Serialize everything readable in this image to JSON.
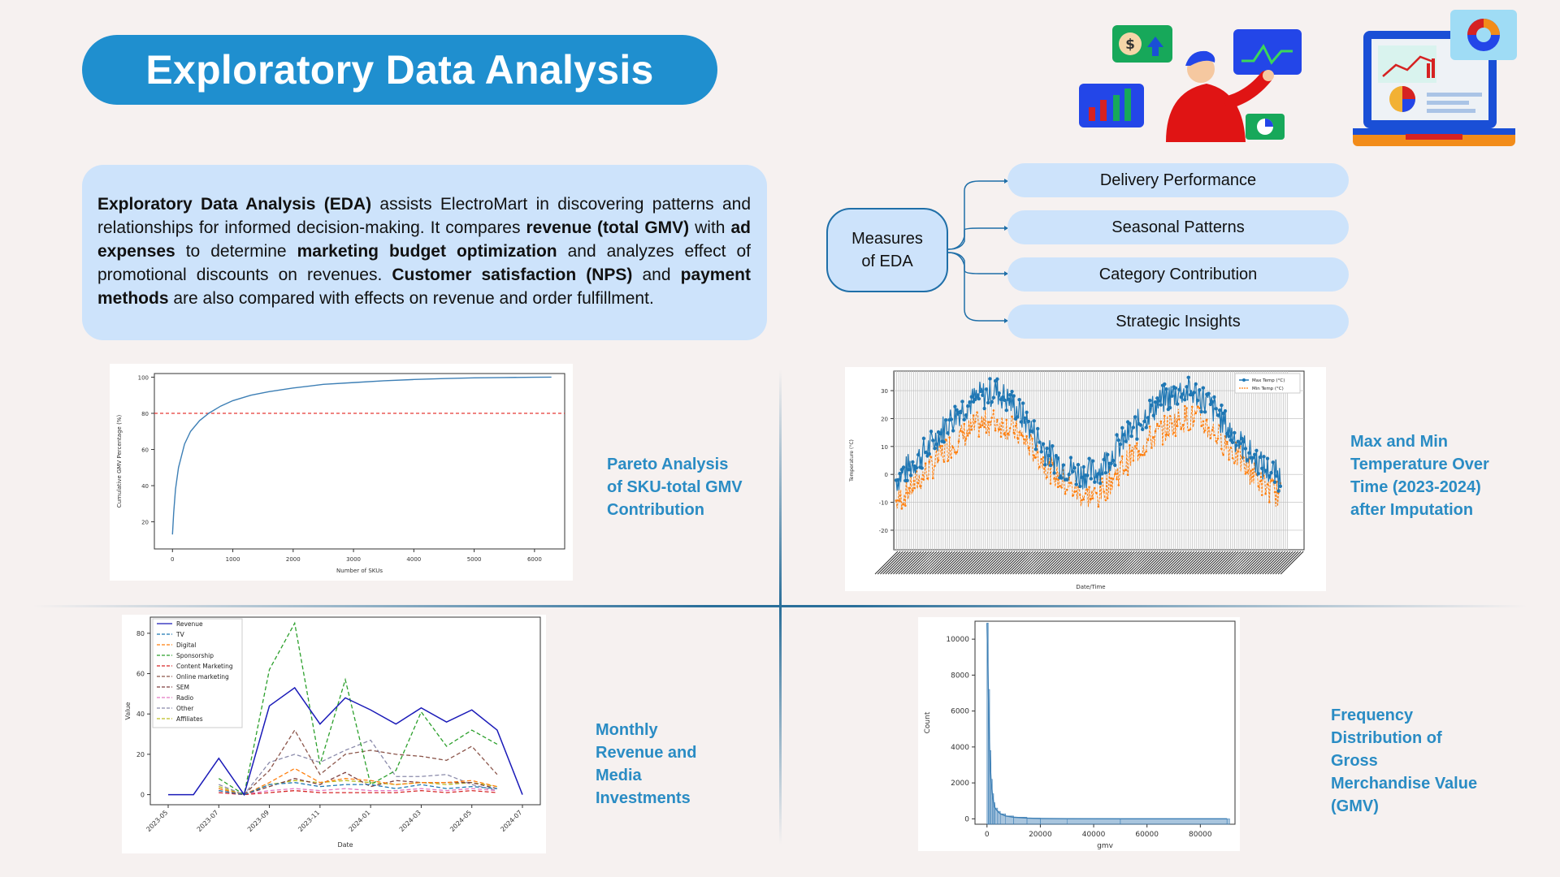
{
  "header": {
    "title": "Exploratory Data Analysis"
  },
  "intro": {
    "segments": [
      {
        "t": "Exploratory Data Analysis (EDA)",
        "b": true
      },
      {
        "t": " assists ElectroMart in discovering patterns and relationships for informed decision-making. It compares ",
        "b": false
      },
      {
        "t": "revenue (total GMV)",
        "b": true
      },
      {
        "t": " with ",
        "b": false
      },
      {
        "t": "ad expenses",
        "b": true
      },
      {
        "t": " to determine ",
        "b": false
      },
      {
        "t": "marketing budget optimization",
        "b": true
      },
      {
        "t": " and analyzes effect of promotional discounts on revenues. ",
        "b": false
      },
      {
        "t": "Customer satisfaction (NPS)",
        "b": true
      },
      {
        "t": " and ",
        "b": false
      },
      {
        "t": "payment methods",
        "b": true
      },
      {
        "t": " are also compared with effects on revenue and order fulfillment.",
        "b": false
      }
    ]
  },
  "measures": {
    "hub_line1": "Measures",
    "hub_line2": "of EDA",
    "items": [
      "Delivery Performance",
      "Seasonal Patterns",
      "Category Contribution",
      "Strategic Insights"
    ]
  },
  "captions": {
    "pareto": [
      "Pareto Analysis",
      "of SKU-total GMV",
      "Contribution"
    ],
    "temperature": [
      "Max and Min",
      "Temperature Over",
      "Time (2023-2024)",
      "after Imputation"
    ],
    "media": [
      "Monthly",
      "Revenue and",
      "Media",
      "Investments"
    ],
    "gmv": [
      "Frequency",
      "Distribution of",
      "Gross",
      "Merchandise Value",
      "(GMV)"
    ]
  },
  "colors": {
    "accent": "#1f8fcf",
    "panel": "#cde3fb",
    "caption": "#2a8cc4",
    "background": "#f6f1f0"
  },
  "chart_data": [
    {
      "type": "line",
      "id": "pareto",
      "xlabel": "Number of SKUs",
      "ylabel": "Cumulative GMV Percentage (%)",
      "xticks": [
        0,
        1000,
        2000,
        3000,
        4000,
        5000,
        6000
      ],
      "yticks": [
        20,
        40,
        60,
        80,
        100
      ],
      "xlim": [
        -300,
        6500
      ],
      "ylim": [
        5,
        102
      ],
      "reference_line": {
        "y": 80,
        "color": "#e53935",
        "style": "dashed"
      },
      "series": [
        {
          "color": "#3d7fb5",
          "x": [
            0,
            20,
            50,
            100,
            200,
            300,
            450,
            600,
            800,
            1000,
            1300,
            1600,
            2000,
            2500,
            3000,
            3500,
            4000,
            4500,
            5000,
            5500,
            6000,
            6280
          ],
          "y": [
            13,
            25,
            38,
            50,
            63,
            70,
            76,
            80,
            84,
            87,
            90,
            92,
            94,
            96,
            97,
            98,
            98.7,
            99.2,
            99.6,
            99.8,
            99.95,
            100
          ]
        }
      ]
    },
    {
      "type": "line",
      "id": "temperature",
      "xlabel": "Date/Time",
      "ylabel": "Temperature (°C)",
      "yticks": [
        -20,
        -10,
        0,
        10,
        20,
        30
      ],
      "ylim": [
        -27,
        37
      ],
      "grid": true,
      "legend": "top-right",
      "series": [
        {
          "name": "Max Temp (°C)",
          "color": "#1f77b4",
          "style": "solid-marker"
        },
        {
          "name": "Min Temp (°C)",
          "color": "#ff7f0e",
          "style": "dashed-marker"
        }
      ],
      "pattern": {
        "x_months": [
          0,
          1,
          2,
          3,
          4,
          5,
          6,
          7,
          8,
          9,
          10,
          11,
          12,
          13,
          14,
          15,
          16,
          17,
          18,
          19,
          20,
          21,
          22,
          23
        ],
        "max_temp": [
          -2,
          4,
          10,
          18,
          24,
          28,
          30,
          25,
          17,
          8,
          3,
          0,
          1,
          8,
          15,
          22,
          27,
          30,
          29,
          23,
          15,
          8,
          2,
          -1
        ],
        "min_temp": [
          -10,
          -4,
          2,
          9,
          14,
          18,
          19,
          16,
          10,
          3,
          -3,
          -7,
          -8,
          -1,
          6,
          12,
          16,
          20,
          20,
          15,
          9,
          2,
          -4,
          -8
        ]
      }
    },
    {
      "type": "line",
      "id": "media",
      "xlabel": "Date",
      "ylabel": "Value",
      "categories": [
        "2023-05",
        "2023-06",
        "2023-07",
        "2023-08",
        "2023-09",
        "2023-10",
        "2023-11",
        "2023-12",
        "2024-01",
        "2024-02",
        "2024-03",
        "2024-04",
        "2024-05",
        "2024-06",
        "2024-07"
      ],
      "xticks": [
        "2023-05",
        "2023-07",
        "2023-09",
        "2023-11",
        "2024-01",
        "2024-03",
        "2024-05",
        "2024-07"
      ],
      "yticks": [
        0,
        20,
        40,
        60,
        80
      ],
      "ylim": [
        -5,
        88
      ],
      "legend": "top-left",
      "series": [
        {
          "name": "Revenue",
          "color": "#1a1ab8",
          "style": "solid",
          "values": [
            0,
            0,
            18,
            0,
            44,
            53,
            35,
            48,
            42,
            35,
            43,
            36,
            42,
            32,
            0
          ]
        },
        {
          "name": "TV",
          "color": "#1f77b4",
          "style": "dashed",
          "values": [
            null,
            null,
            2,
            0,
            5,
            6,
            4,
            5,
            5,
            3,
            5,
            3,
            4,
            3,
            null
          ]
        },
        {
          "name": "Digital",
          "color": "#ff7f0e",
          "style": "dashed",
          "values": [
            null,
            null,
            3,
            0,
            6,
            13,
            6,
            8,
            7,
            5,
            6,
            6,
            7,
            4,
            null
          ]
        },
        {
          "name": "Sponsorship",
          "color": "#2ca02c",
          "style": "dashed",
          "values": [
            null,
            null,
            8,
            0,
            62,
            85,
            15,
            57,
            5,
            12,
            41,
            24,
            32,
            25,
            null
          ]
        },
        {
          "name": "Content Marketing",
          "color": "#d62728",
          "style": "dashed",
          "values": [
            null,
            null,
            1,
            0,
            1,
            2,
            1,
            1,
            1,
            1,
            2,
            1,
            2,
            1,
            null
          ]
        },
        {
          "name": "Online marketing",
          "color": "#8c564b",
          "style": "dashed",
          "values": [
            null,
            null,
            2,
            0,
            12,
            32,
            10,
            20,
            22,
            20,
            19,
            17,
            24,
            10,
            null
          ]
        },
        {
          "name": "SEM",
          "color": "#7f3f3f",
          "style": "dashed",
          "values": [
            null,
            null,
            3,
            0,
            4,
            8,
            5,
            11,
            4,
            7,
            6,
            6,
            6,
            3,
            null
          ]
        },
        {
          "name": "Radio",
          "color": "#e377c2",
          "style": "dashed",
          "values": [
            null,
            null,
            1,
            0,
            2,
            3,
            2,
            3,
            2,
            2,
            3,
            2,
            3,
            2,
            null
          ]
        },
        {
          "name": "Other",
          "color": "#8a8aaa",
          "style": "dashed",
          "values": [
            null,
            null,
            5,
            0,
            16,
            20,
            16,
            22,
            27,
            9,
            9,
            10,
            5,
            2,
            null
          ]
        },
        {
          "name": "Affiliates",
          "color": "#bcbd22",
          "style": "dashed",
          "values": [
            null,
            null,
            4,
            0,
            5,
            7,
            6,
            7,
            6,
            5,
            6,
            5,
            6,
            4,
            null
          ]
        }
      ]
    },
    {
      "type": "histogram",
      "id": "gmv",
      "xlabel": "gmv",
      "ylabel": "Count",
      "xticks": [
        0,
        20000,
        40000,
        60000,
        80000
      ],
      "yticks": [
        0,
        2000,
        4000,
        6000,
        8000,
        10000
      ],
      "xlim": [
        -4500,
        93000
      ],
      "ylim": [
        -300,
        11000
      ],
      "color": "#3d7fb5",
      "bins_x": [
        0,
        500,
        1000,
        1500,
        2000,
        2500,
        3000,
        4000,
        5000,
        7000,
        10000,
        15000,
        20000,
        30000,
        50000,
        90000
      ],
      "counts": [
        10900,
        7200,
        3800,
        2200,
        1400,
        900,
        600,
        420,
        280,
        160,
        90,
        40,
        20,
        8,
        3,
        1
      ]
    }
  ]
}
